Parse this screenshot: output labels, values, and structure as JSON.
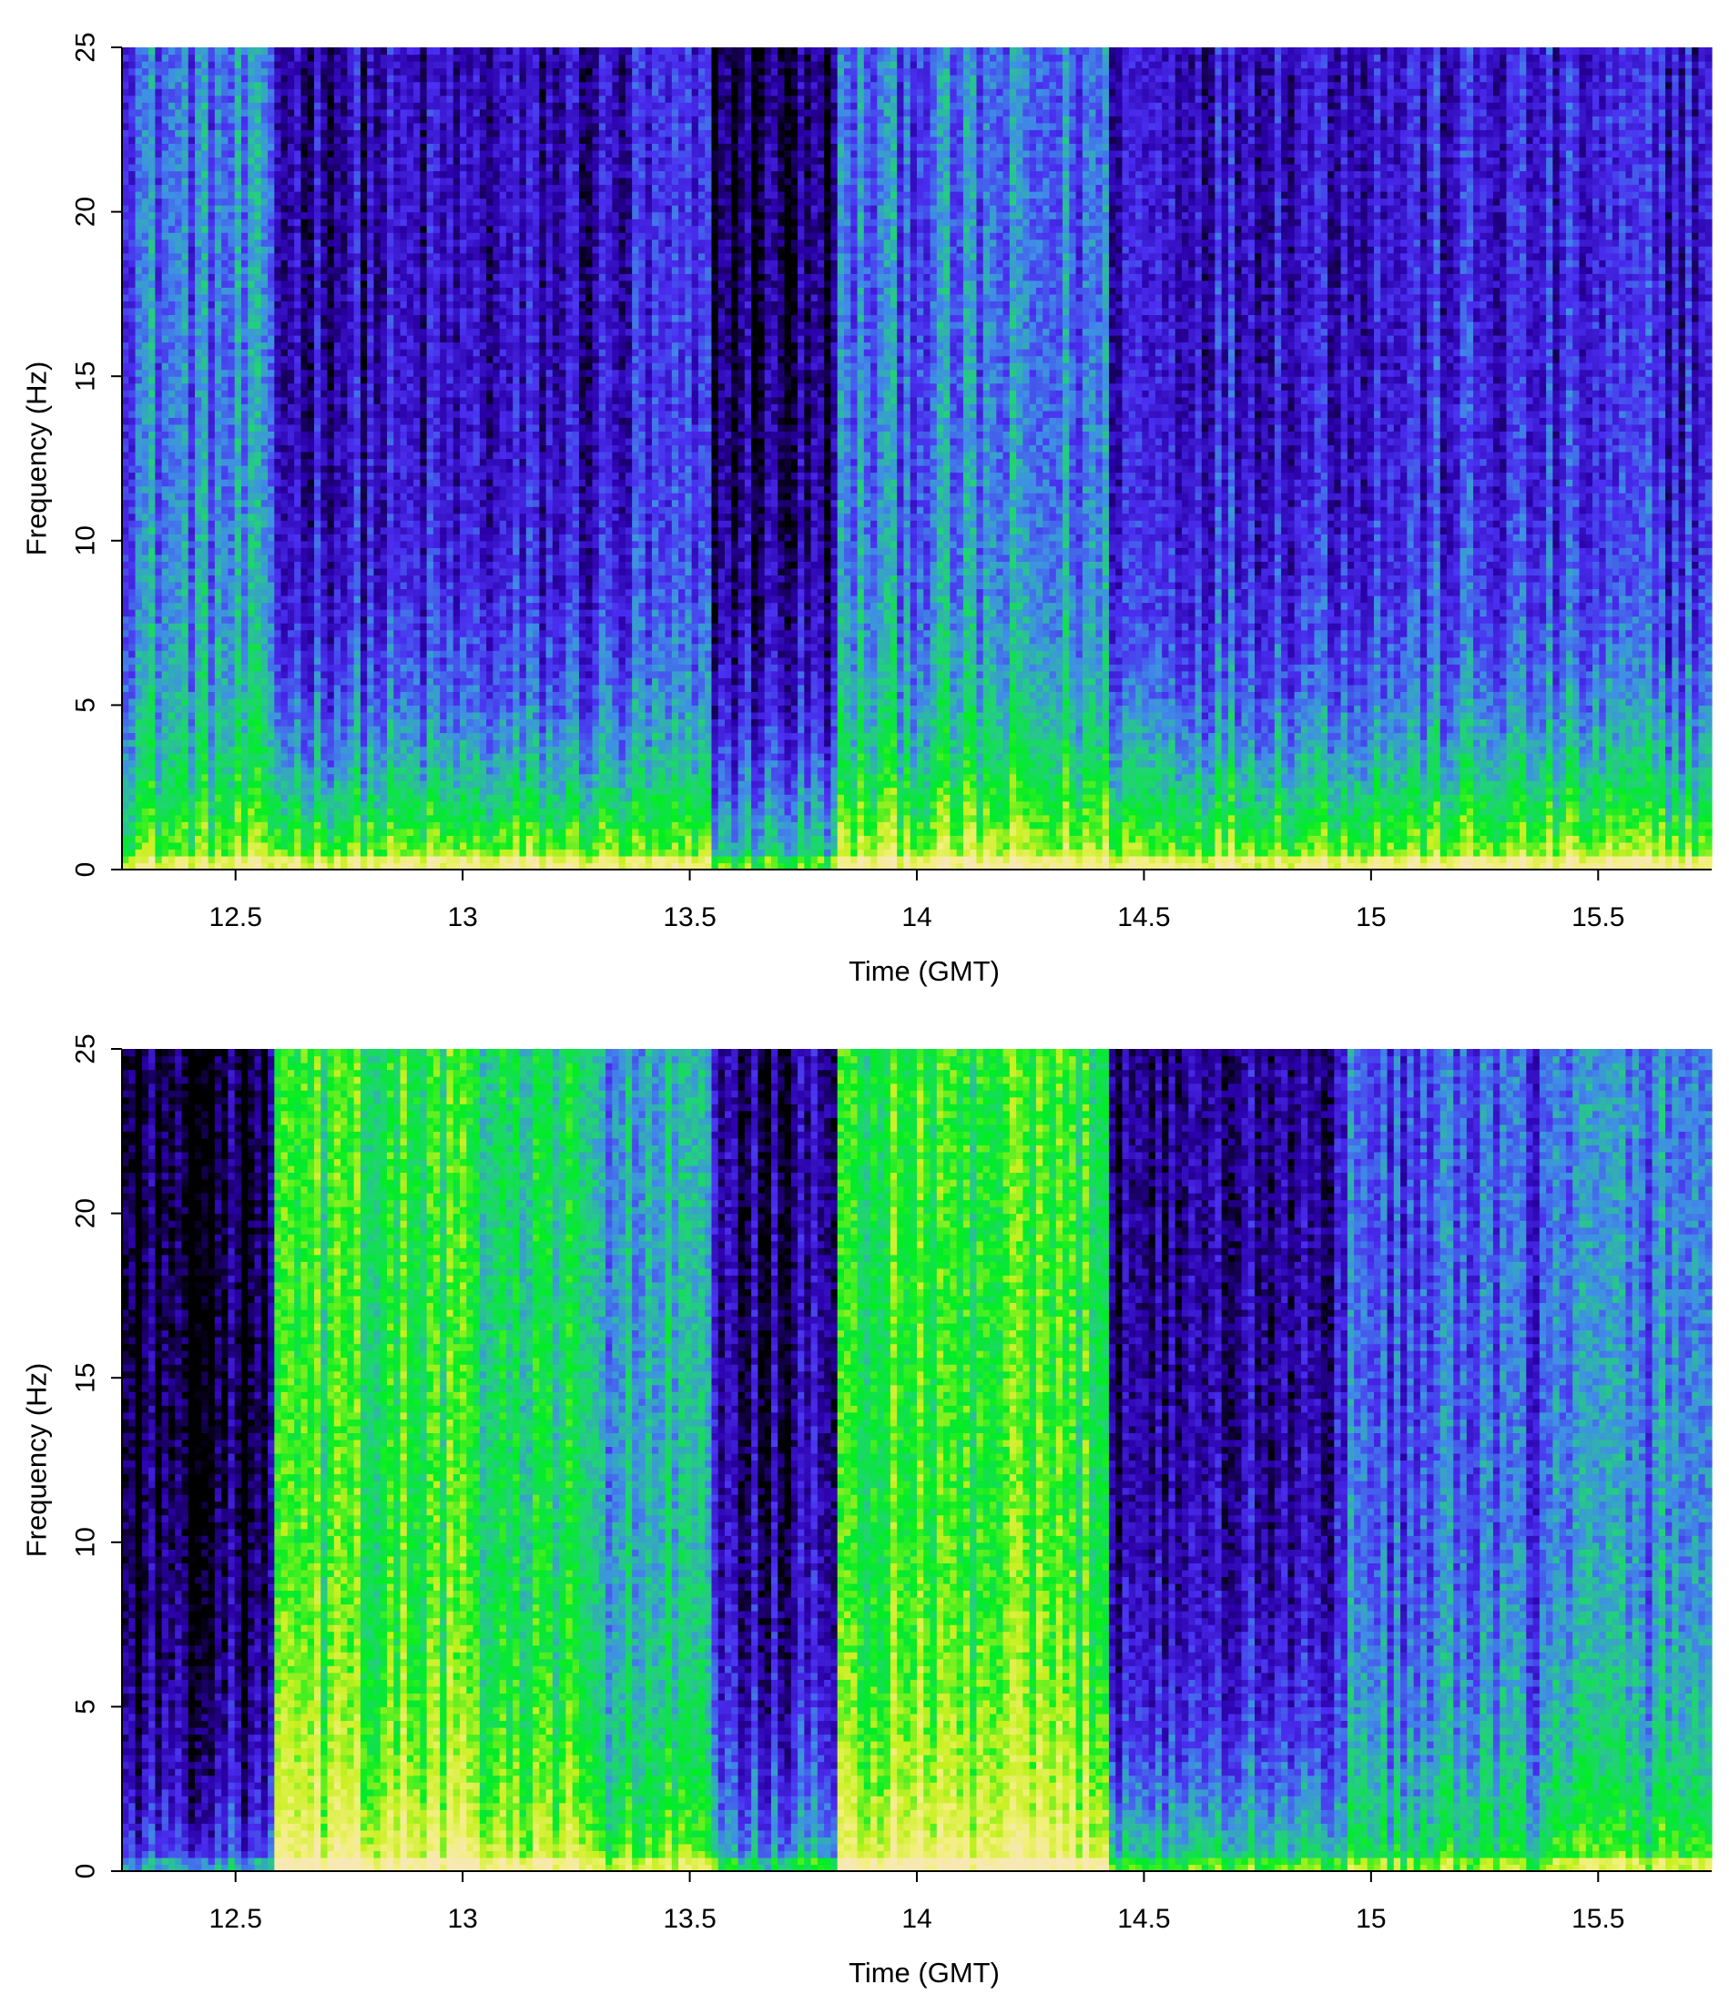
{
  "chart_data": [
    {
      "type": "heatmap",
      "xlabel": "Time (GMT)",
      "ylabel": "Frequency (Hz)",
      "xlim": [
        12.25,
        15.75
      ],
      "ylim": [
        0,
        25
      ],
      "x_ticks": [
        12.5,
        13,
        13.5,
        14,
        14.5,
        15,
        15.5
      ],
      "x_tick_labels": [
        "12.5",
        "13",
        "13.5",
        "14",
        "14.5",
        "15",
        "15.5"
      ],
      "y_ticks": [
        0,
        5,
        10,
        15,
        20,
        25
      ],
      "y_tick_labels": [
        "0",
        "5",
        "10",
        "15",
        "20",
        "25"
      ],
      "colormap": [
        "#000000",
        "#2a00a8",
        "#4a2ef0",
        "#3f8fe6",
        "#22d27a",
        "#00ee22",
        "#c8f020",
        "#f2f07a",
        "#f7e8b4"
      ],
      "segments": [
        {
          "t_start": 12.25,
          "t_end": 12.58,
          "low_freq_level": 0.74,
          "high_freq_level": 0.33,
          "note": ""
        },
        {
          "t_start": 12.58,
          "t_end": 13.38,
          "low_freq_level": 0.78,
          "high_freq_level": 0.15,
          "note": ""
        },
        {
          "t_start": 13.38,
          "t_end": 13.55,
          "low_freq_level": 0.74,
          "high_freq_level": 0.2,
          "note": ""
        },
        {
          "t_start": 13.55,
          "t_end": 13.83,
          "low_freq_level": 0.55,
          "high_freq_level": 0.08,
          "note": ""
        },
        {
          "t_start": 13.83,
          "t_end": 14.42,
          "low_freq_level": 0.82,
          "high_freq_level": 0.32,
          "note": ""
        },
        {
          "t_start": 14.42,
          "t_end": 15.75,
          "low_freq_level": 0.8,
          "high_freq_level": 0.2,
          "note": ""
        }
      ]
    },
    {
      "type": "heatmap",
      "xlabel": "Time (GMT)",
      "ylabel": "Frequency (Hz)",
      "xlim": [
        12.25,
        15.75
      ],
      "ylim": [
        0,
        25
      ],
      "x_ticks": [
        12.5,
        13,
        13.5,
        14,
        14.5,
        15,
        15.5
      ],
      "x_tick_labels": [
        "12.5",
        "13",
        "13.5",
        "14",
        "14.5",
        "15",
        "15.5"
      ],
      "y_ticks": [
        0,
        5,
        10,
        15,
        20,
        25
      ],
      "y_tick_labels": [
        "0",
        "5",
        "10",
        "15",
        "20",
        "25"
      ],
      "colormap": [
        "#000000",
        "#2a00a8",
        "#4a2ef0",
        "#3f8fe6",
        "#22d27a",
        "#00ee22",
        "#c8f020",
        "#f2f07a",
        "#f7e8b4"
      ],
      "segments": [
        {
          "t_start": 12.25,
          "t_end": 12.59,
          "low_freq_level": 0.3,
          "high_freq_level": 0.04
        },
        {
          "t_start": 12.59,
          "t_end": 13.03,
          "low_freq_level": 0.88,
          "high_freq_level": 0.6
        },
        {
          "t_start": 13.03,
          "t_end": 13.25,
          "low_freq_level": 0.8,
          "high_freq_level": 0.52
        },
        {
          "t_start": 13.25,
          "t_end": 13.55,
          "low_freq_level": 0.7,
          "high_freq_level": 0.42
        },
        {
          "t_start": 13.55,
          "t_end": 13.83,
          "low_freq_level": 0.45,
          "high_freq_level": 0.1
        },
        {
          "t_start": 13.83,
          "t_end": 14.42,
          "low_freq_level": 0.88,
          "high_freq_level": 0.6
        },
        {
          "t_start": 14.42,
          "t_end": 14.92,
          "low_freq_level": 0.55,
          "high_freq_level": 0.12
        },
        {
          "t_start": 14.92,
          "t_end": 15.4,
          "low_freq_level": 0.58,
          "high_freq_level": 0.28
        },
        {
          "t_start": 15.4,
          "t_end": 15.75,
          "low_freq_level": 0.68,
          "high_freq_level": 0.35
        }
      ]
    }
  ]
}
